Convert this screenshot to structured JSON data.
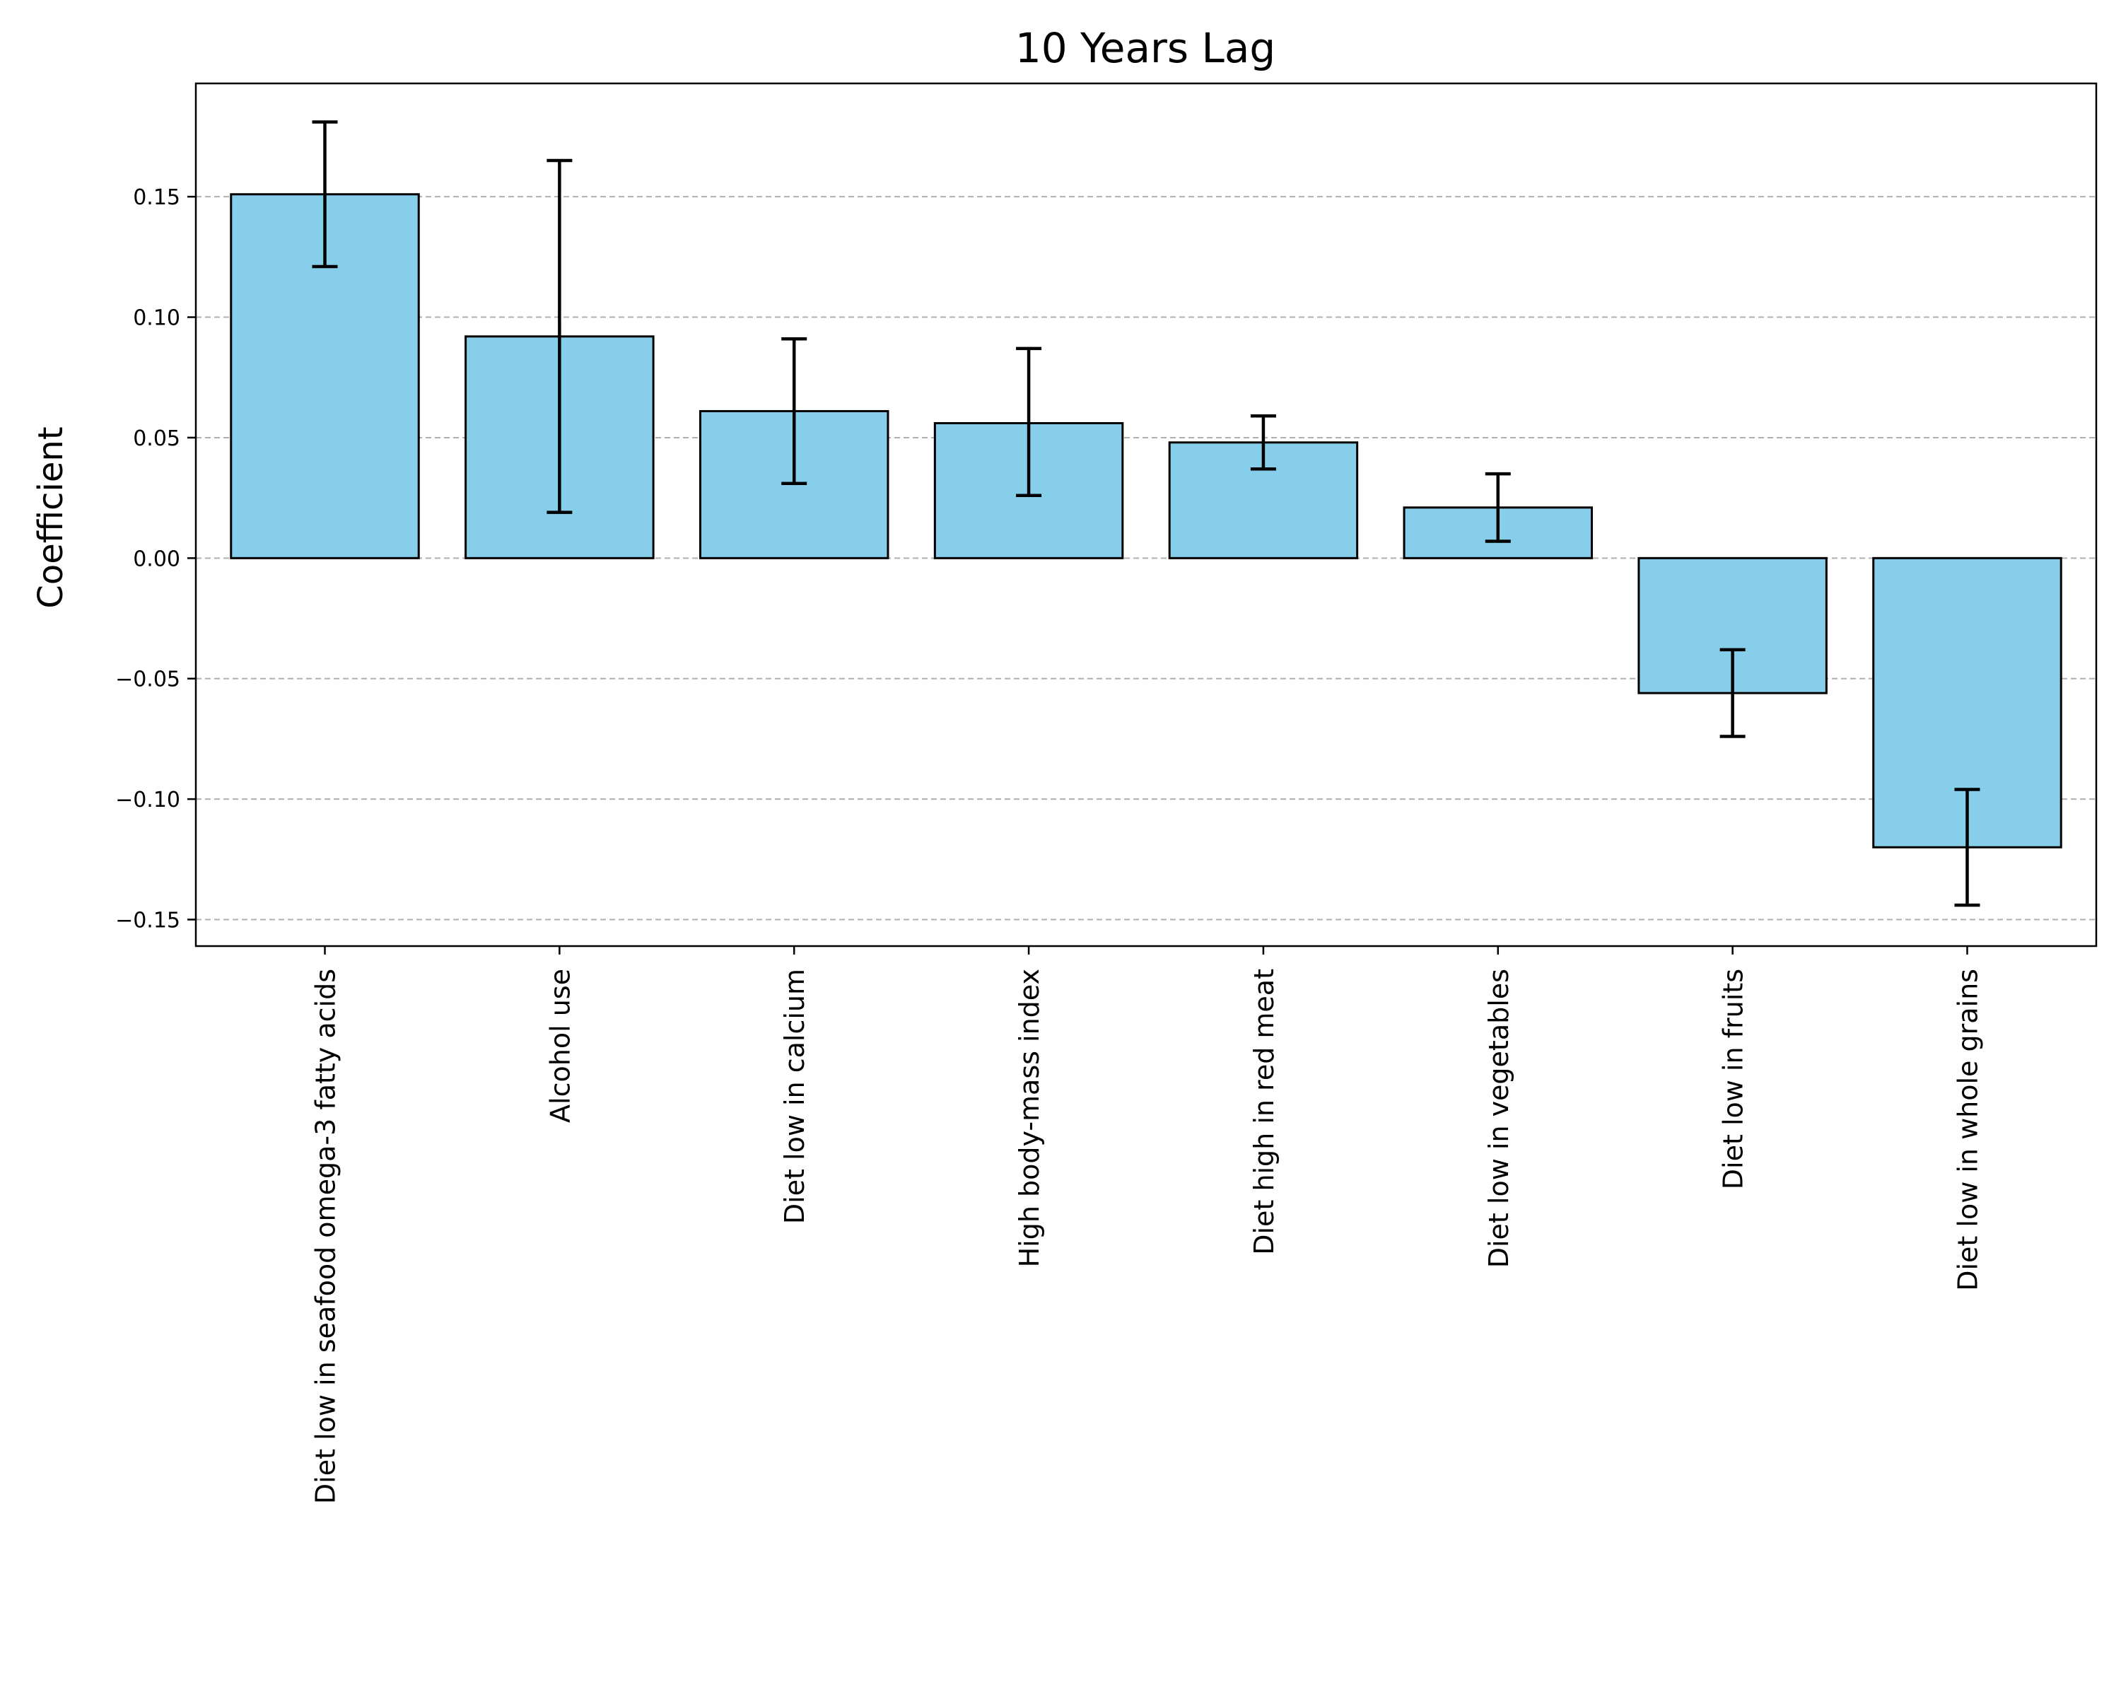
{
  "chart_data": {
    "type": "bar",
    "title": "10 Years Lag",
    "xlabel": "",
    "ylabel": "Coefficient",
    "categories": [
      "Diet low in seafood omega-3 fatty acids",
      "Alcohol use",
      "Diet low in calcium",
      "High body-mass index",
      "Diet high in red meat",
      "Diet low in vegetables",
      "Diet low in fruits",
      "Diet low in whole grains"
    ],
    "values": [
      0.151,
      0.092,
      0.061,
      0.056,
      0.048,
      0.021,
      -0.056,
      -0.12
    ],
    "error_low": [
      0.121,
      0.019,
      0.031,
      0.026,
      0.037,
      0.007,
      -0.074,
      -0.144
    ],
    "error_high": [
      0.181,
      0.165,
      0.091,
      0.087,
      0.059,
      0.035,
      -0.038,
      -0.096
    ],
    "yticks": [
      -0.15,
      -0.1,
      -0.05,
      0.0,
      0.05,
      0.1,
      0.15
    ],
    "ytick_labels": [
      "−0.15",
      "−0.10",
      "−0.05",
      "0.00",
      "0.05",
      "0.10",
      "0.15"
    ],
    "ylim": [
      -0.161,
      0.197
    ],
    "grid": "horizontal dashed",
    "legend": "none",
    "colors": {
      "bar_fill": "#87ceeb",
      "bar_edge": "#000000",
      "error_bar": "#000000",
      "grid": "#b0b0b0",
      "axes": "#000000"
    }
  }
}
